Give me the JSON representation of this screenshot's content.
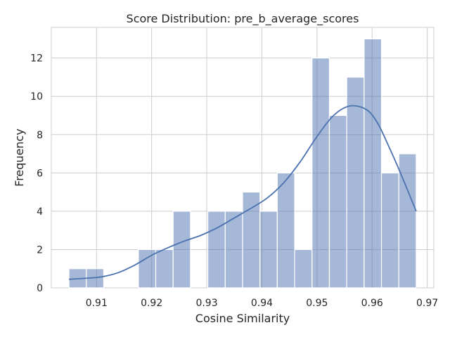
{
  "chart_data": {
    "type": "bar",
    "title": "Score Distribution: pre_b_average_scores",
    "xlabel": "Cosine Similarity",
    "ylabel": "Frequency",
    "xlim": [
      0.9018,
      0.9712
    ],
    "ylim": [
      0,
      13.6
    ],
    "x_ticks": [
      0.91,
      0.92,
      0.93,
      0.94,
      0.95,
      0.96,
      0.97
    ],
    "x_tick_labels": [
      "0.91",
      "0.92",
      "0.93",
      "0.94",
      "0.95",
      "0.96",
      "0.97"
    ],
    "y_ticks": [
      0,
      2,
      4,
      6,
      8,
      10,
      12
    ],
    "y_tick_labels": [
      "0",
      "2",
      "4",
      "6",
      "8",
      "10",
      "12"
    ],
    "grid": true,
    "histogram": {
      "bin_start": 0.905,
      "bin_width": 0.00315,
      "counts": [
        1,
        1,
        0,
        0,
        2,
        2,
        4,
        0,
        4,
        4,
        5,
        4,
        6,
        2,
        12,
        9,
        11,
        13,
        6,
        7
      ],
      "color": "#4c72b0",
      "opacity": 0.5
    },
    "kde": {
      "color": "#4c72b0",
      "points": [
        [
          0.905,
          0.45
        ],
        [
          0.908,
          0.5
        ],
        [
          0.911,
          0.58
        ],
        [
          0.914,
          0.8
        ],
        [
          0.917,
          1.2
        ],
        [
          0.92,
          1.7
        ],
        [
          0.923,
          2.1
        ],
        [
          0.926,
          2.45
        ],
        [
          0.929,
          2.75
        ],
        [
          0.932,
          3.15
        ],
        [
          0.935,
          3.65
        ],
        [
          0.938,
          4.15
        ],
        [
          0.941,
          4.7
        ],
        [
          0.944,
          5.5
        ],
        [
          0.947,
          6.6
        ],
        [
          0.95,
          7.9
        ],
        [
          0.953,
          9.0
        ],
        [
          0.956,
          9.5
        ],
        [
          0.959,
          9.3
        ],
        [
          0.961,
          8.6
        ],
        [
          0.963,
          7.4
        ],
        [
          0.965,
          6.1
        ],
        [
          0.968,
          4.0
        ]
      ]
    }
  }
}
